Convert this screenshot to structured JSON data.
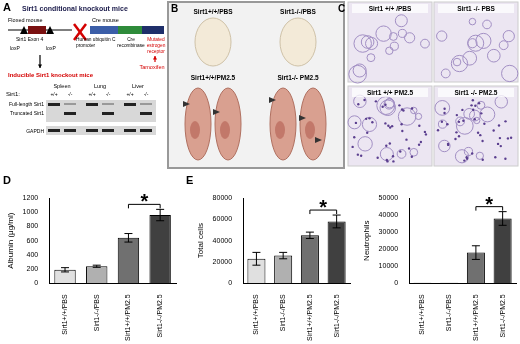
{
  "panels": {
    "A": {
      "label": "A",
      "title": "Sirt1 conditional knockout mice",
      "floxed_mouse": "Floxed mouse",
      "exon": "Sirt1 Exon 4",
      "loxp": [
        "loxP",
        "loxP"
      ],
      "cre_mouse": "Cre mouse",
      "promoter": [
        "Human ubiquitin C",
        "promoter"
      ],
      "cre": [
        "Cre",
        "recombinase"
      ],
      "receptor": [
        "Mutated",
        "estrogen",
        "receptor"
      ],
      "inducer": "Tamoxifen",
      "result": "Inducible Sirt1 knockout mice",
      "blot": {
        "row_label": "Sirt1:",
        "tissues": [
          "Spleen",
          "Lung",
          "Liver"
        ],
        "genotypes": [
          "+/+",
          "-/-"
        ],
        "bands": [
          "Full-length Sirt1",
          "Truncated Sirt1",
          "GAPDH"
        ]
      }
    },
    "B": {
      "label": "B",
      "groups": [
        "Sirt1+/+/PBS",
        "Sirt1-/-/PBS",
        "Sirt1+/+/PM2.5",
        "Sirt1-/- PM2.5"
      ]
    },
    "C": {
      "label": "C",
      "groups": [
        "Sirt1 +/+ /PBS",
        "Sirt1 -/- PBS",
        "Sirt1 +/+ PM2.5",
        "Sirt1 -/- PM2.5"
      ]
    },
    "D": {
      "label": "D"
    },
    "E": {
      "label": "E"
    }
  },
  "chart_data": [
    {
      "type": "bar",
      "y_label": "Albumin (μg/ml)",
      "categories": [
        "Sirt1+/+/PBS",
        "Sirt1-/-/PBS",
        "Sirt1+/+/PM2.5",
        "Sirt1-/-/PM2.5"
      ],
      "values": [
        190,
        240,
        640,
        960
      ],
      "errors": [
        30,
        15,
        60,
        80
      ],
      "colors": [
        "#e0e0e0",
        "#b0b0b0",
        "#707070",
        "#404040"
      ],
      "ylim": [
        0,
        1200
      ],
      "yticks": [
        0,
        200,
        400,
        600,
        800,
        1000,
        1200
      ],
      "grid": false,
      "annotation": {
        "text": "*",
        "categories": [
          "Sirt1+/+/PM2.5",
          "Sirt1-/-/PM2.5"
        ]
      }
    },
    {
      "type": "bar",
      "y_label": "Total cells",
      "categories": [
        "Sirt1+/+/PBS",
        "Sirt1-/-/PBS",
        "Sirt1+/+/PM2.5",
        "Sirt1-/-/PM2.5"
      ],
      "values": [
        23000,
        26000,
        45000,
        58000
      ],
      "errors": [
        6000,
        3000,
        3000,
        6000
      ],
      "colors": [
        "#e0e0e0",
        "#b0b0b0",
        "#707070",
        "#404040"
      ],
      "ylim": [
        0,
        80000
      ],
      "yticks": [
        0,
        20000,
        40000,
        60000,
        80000
      ],
      "grid": false,
      "annotation": {
        "text": "*",
        "categories": [
          "Sirt1+/+/PM2.5",
          "Sirt1-/-/PM2.5"
        ]
      }
    },
    {
      "type": "bar",
      "y_label": "Neutrophils",
      "categories": [
        "Sirt1+/+/PBS",
        "Sirt1-/-/PBS",
        "Sirt1+/+/PM2.5",
        "Sirt1-/-/PM2.5"
      ],
      "values": [
        300,
        300,
        18000,
        38000
      ],
      "errors": [
        0,
        0,
        4000,
        4000
      ],
      "colors": [
        "#e0e0e0",
        "#b0b0b0",
        "#707070",
        "#404040"
      ],
      "ylim": [
        0,
        50000
      ],
      "yticks": [
        0,
        10000,
        20000,
        30000,
        40000,
        50000
      ],
      "grid": false,
      "annotation": {
        "text": "*",
        "categories": [
          "Sirt1+/+/PM2.5",
          "Sirt1-/-/PM2.5"
        ]
      }
    }
  ]
}
